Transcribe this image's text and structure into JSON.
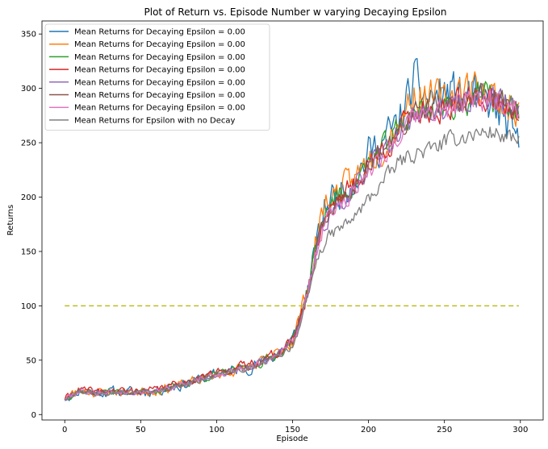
{
  "chart_data": {
    "type": "line",
    "title": "Plot of Return vs. Episode Number w varying Decaying Epsilon",
    "xlabel": "Episode",
    "ylabel": "Returns",
    "xlim": [
      -15,
      315
    ],
    "ylim": [
      -5,
      362
    ],
    "xticks": [
      0,
      50,
      100,
      150,
      200,
      250,
      300
    ],
    "yticks": [
      0,
      50,
      100,
      150,
      200,
      250,
      300,
      350
    ],
    "grid": false,
    "legend_position": "top-left",
    "episodes": 300,
    "knots_x": [
      0,
      10,
      20,
      30,
      40,
      50,
      60,
      70,
      80,
      90,
      100,
      110,
      120,
      130,
      140,
      150,
      155,
      160,
      165,
      170,
      175,
      180,
      190,
      200,
      210,
      220,
      230,
      240,
      250,
      260,
      270,
      280,
      290,
      299
    ],
    "series": [
      {
        "name": "Mean Returns for Decaying Epsilon = 0.00",
        "color": "#1f77b4",
        "seed": 11,
        "noise": 9,
        "knots_y": [
          15,
          22,
          20,
          21,
          21,
          21,
          22,
          25,
          28,
          33,
          37,
          40,
          43,
          48,
          56,
          68,
          90,
          115,
          150,
          185,
          200,
          205,
          215,
          240,
          252,
          268,
          305,
          290,
          295,
          295,
          290,
          285,
          270,
          245
        ]
      },
      {
        "name": "Mean Returns for Decaying Epsilon = 0.00",
        "color": "#ff7f0e",
        "seed": 23,
        "noise": 8,
        "knots_y": [
          15,
          23,
          20,
          21,
          21,
          21,
          22,
          25,
          28,
          33,
          37,
          40,
          43,
          48,
          56,
          68,
          92,
          118,
          155,
          190,
          200,
          205,
          215,
          235,
          248,
          270,
          295,
          290,
          290,
          300,
          300,
          295,
          285,
          280
        ]
      },
      {
        "name": "Mean Returns for Decaying Epsilon = 0.00",
        "color": "#2ca02c",
        "seed": 37,
        "noise": 6,
        "knots_y": [
          15,
          22,
          20,
          21,
          21,
          21,
          22,
          25,
          28,
          33,
          37,
          40,
          43,
          48,
          56,
          68,
          90,
          115,
          150,
          180,
          195,
          200,
          210,
          232,
          245,
          262,
          280,
          280,
          282,
          285,
          292,
          292,
          285,
          280
        ]
      },
      {
        "name": "Mean Returns for Decaying Epsilon = 0.00",
        "color": "#d62728",
        "seed": 41,
        "noise": 6,
        "knots_y": [
          15,
          23,
          21,
          22,
          22,
          22,
          23,
          27,
          30,
          35,
          38,
          42,
          46,
          50,
          57,
          68,
          88,
          112,
          148,
          178,
          192,
          200,
          210,
          230,
          243,
          260,
          278,
          280,
          280,
          285,
          290,
          292,
          285,
          280
        ]
      },
      {
        "name": "Mean Returns for Decaying Epsilon = 0.00",
        "color": "#9467bd",
        "seed": 53,
        "noise": 5,
        "knots_y": [
          15,
          22,
          20,
          21,
          21,
          21,
          22,
          25,
          28,
          33,
          37,
          40,
          43,
          48,
          56,
          67,
          86,
          110,
          145,
          172,
          185,
          192,
          205,
          228,
          242,
          258,
          275,
          278,
          280,
          285,
          290,
          292,
          288,
          285
        ]
      },
      {
        "name": "Mean Returns for Decaying Epsilon = 0.00",
        "color": "#8c564b",
        "seed": 67,
        "noise": 5,
        "knots_y": [
          15,
          22,
          20,
          21,
          21,
          21,
          22,
          25,
          28,
          33,
          37,
          40,
          43,
          48,
          56,
          67,
          87,
          112,
          147,
          175,
          188,
          195,
          207,
          230,
          243,
          260,
          277,
          280,
          282,
          287,
          292,
          293,
          287,
          283
        ]
      },
      {
        "name": "Mean Returns for Decaying Epsilon = 0.00",
        "color": "#e377c2",
        "seed": 79,
        "noise": 5,
        "knots_y": [
          15,
          22,
          20,
          21,
          21,
          21,
          22,
          25,
          28,
          33,
          37,
          40,
          43,
          48,
          56,
          67,
          85,
          110,
          145,
          170,
          185,
          192,
          205,
          226,
          240,
          255,
          272,
          278,
          280,
          285,
          288,
          290,
          285,
          282
        ]
      },
      {
        "name": "Mean Returns for Epsilon with no Decay",
        "color": "#7f7f7f",
        "seed": 97,
        "noise": 4,
        "knots_y": [
          15,
          22,
          20,
          21,
          21,
          21,
          22,
          25,
          28,
          32,
          36,
          39,
          42,
          46,
          53,
          63,
          82,
          105,
          138,
          155,
          165,
          170,
          180,
          198,
          215,
          232,
          240,
          243,
          250,
          255,
          258,
          260,
          255,
          250
        ]
      },
      {
        "name": "",
        "color": "#bcbd22",
        "dashed": true,
        "x": [
          0,
          299
        ],
        "y": [
          100,
          100
        ]
      }
    ]
  }
}
